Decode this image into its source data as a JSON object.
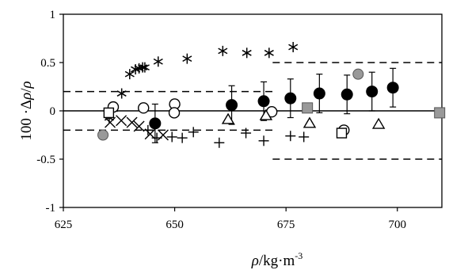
{
  "chart_data": {
    "type": "scatter",
    "title": "",
    "xlabel": {
      "symbol": "ρ",
      "unit": "/kg·m",
      "exponent": "-3"
    },
    "ylabel": {
      "prefix": "100 ·Δ",
      "symbol": "ρ",
      "mid": "/",
      "symbol2": "ρ"
    },
    "xlim": [
      625,
      710
    ],
    "ylim": [
      -1,
      1
    ],
    "xticks": [
      "625",
      "650",
      "675",
      "700"
    ],
    "yticks": [
      "-1",
      "-0.5",
      "0",
      "0.5",
      "1"
    ],
    "grid": false,
    "legend": "none",
    "colors": {
      "axis": "#000000",
      "filled": "#000000",
      "gray": "#999999",
      "open": "#ffffff"
    },
    "reference_lines": [
      {
        "style": "solid",
        "y": 0,
        "x": [
          625,
          710
        ]
      },
      {
        "style": "dashed",
        "y": 0.2,
        "x": [
          625,
          672
        ]
      },
      {
        "style": "dashed",
        "y": -0.2,
        "x": [
          625,
          672
        ]
      },
      {
        "style": "dashed",
        "y": 0.5,
        "x": [
          672,
          710
        ]
      },
      {
        "style": "dashed",
        "y": -0.5,
        "x": [
          672,
          710
        ]
      }
    ],
    "series": [
      {
        "marker": "asterisk",
        "points": [
          [
            635.3,
            -0.07
          ],
          [
            636.2,
            0.02
          ],
          [
            638.1,
            0.18
          ],
          [
            639.9,
            0.38
          ],
          [
            641.2,
            0.43
          ],
          [
            642.0,
            0.44
          ],
          [
            642.8,
            0.45
          ],
          [
            643.3,
            0.45
          ],
          [
            646.3,
            0.51
          ],
          [
            652.8,
            0.54
          ],
          [
            660.8,
            0.62
          ],
          [
            666.2,
            0.6
          ],
          [
            671.2,
            0.6
          ],
          [
            676.6,
            0.66
          ]
        ]
      },
      {
        "marker": "plus",
        "points": [
          [
            644.0,
            -0.2
          ],
          [
            646.0,
            -0.28
          ],
          [
            649.4,
            -0.27
          ],
          [
            651.7,
            -0.28
          ],
          [
            654.2,
            -0.22
          ],
          [
            660.0,
            -0.33
          ],
          [
            666.0,
            -0.23
          ],
          [
            670.0,
            -0.31
          ],
          [
            676.0,
            -0.26
          ],
          [
            679.0,
            -0.27
          ]
        ]
      },
      {
        "marker": "x",
        "points": [
          [
            635.5,
            -0.12
          ],
          [
            638.0,
            -0.1
          ],
          [
            640.4,
            -0.12
          ],
          [
            642.0,
            -0.16
          ],
          [
            644.5,
            -0.24
          ],
          [
            647.4,
            -0.25
          ]
        ]
      },
      {
        "marker": "circle-open",
        "points": [
          [
            636.2,
            0.04
          ],
          [
            643.0,
            0.03
          ],
          [
            650.0,
            0.07
          ],
          [
            649.9,
            -0.02
          ],
          [
            671.8,
            -0.01
          ],
          [
            688.0,
            -0.2
          ]
        ]
      },
      {
        "marker": "circle-filled",
        "points": [
          [
            645.6,
            -0.13
          ],
          [
            662.8,
            0.06
          ],
          [
            670.0,
            0.1
          ],
          [
            676.0,
            0.13
          ],
          [
            682.5,
            0.18
          ],
          [
            688.7,
            0.17
          ],
          [
            694.3,
            0.2
          ],
          [
            699.0,
            0.24
          ]
        ],
        "error": [
          0.2,
          0.2,
          0.2,
          0.2,
          0.2,
          0.2,
          0.2,
          0.2
        ]
      },
      {
        "marker": "circle-gray",
        "points": [
          [
            633.9,
            -0.25
          ],
          [
            691.2,
            0.38
          ]
        ]
      },
      {
        "marker": "triangle-open",
        "points": [
          [
            662.0,
            -0.09
          ],
          [
            670.5,
            -0.05
          ],
          [
            680.3,
            -0.13
          ],
          [
            695.8,
            -0.14
          ]
        ]
      },
      {
        "marker": "square-open",
        "points": [
          [
            635.2,
            -0.02
          ],
          [
            687.5,
            -0.23
          ]
        ]
      },
      {
        "marker": "square-gray",
        "points": [
          [
            679.8,
            0.03
          ],
          [
            709.5,
            -0.02
          ]
        ]
      }
    ]
  }
}
